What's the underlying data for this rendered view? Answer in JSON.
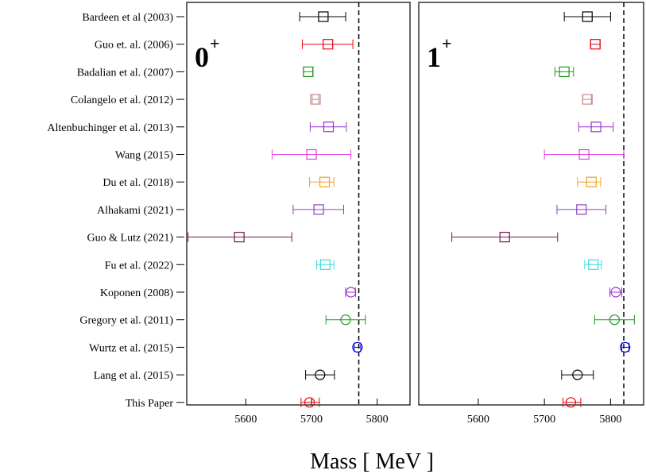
{
  "chart_data": {
    "type": "scatter",
    "xlabel": "Mass [ MeV ]",
    "xlim": [
      5510,
      5850
    ],
    "xticks": [
      5600,
      5700,
      5800
    ],
    "rows": [
      "Bardeen et al (2003)",
      "Guo et. al. (2006)",
      "Badalian et al. (2007)",
      "Colangelo et al. (2012)",
      "Altenbuchinger et al. (2013)",
      "Wang (2015)",
      "Du et al. (2018)",
      "Alhakami (2021)",
      "Guo & Lutz (2021)",
      "Fu et al. (2022)",
      "Koponen (2008)",
      "Gregory et al. (2011)",
      "Wurtz et al. (2015)",
      "Lang et al. (2015)",
      "This Paper"
    ],
    "colors": [
      "#000000",
      "#e8000b",
      "#1a9a1a",
      "#c08c8c",
      "#9a30d0",
      "#e040e0",
      "#f0a020",
      "#8a40c0",
      "#6a1a4a",
      "#40d8d8",
      "#9a30d0",
      "#1a9a1a",
      "#0000e0",
      "#000000",
      "#e8000b"
    ],
    "markers": [
      "square",
      "square",
      "square",
      "square",
      "square",
      "square",
      "square",
      "square",
      "square",
      "square",
      "circle",
      "circle",
      "circle",
      "circle",
      "circle"
    ],
    "panels": [
      {
        "title": "0",
        "title_sup": "+",
        "reference_line": 5772,
        "points": [
          {
            "value": 5718,
            "low": 5682,
            "high": 5752
          },
          {
            "value": 5725,
            "low": 5686,
            "high": 5763
          },
          {
            "value": 5695,
            "low": 5688,
            "high": 5702
          },
          {
            "value": 5706,
            "low": 5701,
            "high": 5711
          },
          {
            "value": 5726,
            "low": 5698,
            "high": 5753
          },
          {
            "value": 5700,
            "low": 5640,
            "high": 5760
          },
          {
            "value": 5720,
            "low": 5697,
            "high": 5734
          },
          {
            "value": 5711,
            "low": 5672,
            "high": 5749
          },
          {
            "value": 5590,
            "low": 5512,
            "high": 5670
          },
          {
            "value": 5721,
            "low": 5708,
            "high": 5734
          },
          {
            "value": 5760,
            "low": 5752,
            "high": 5767
          },
          {
            "value": 5752,
            "low": 5722,
            "high": 5782
          },
          {
            "value": 5770,
            "low": 5765,
            "high": 5775
          },
          {
            "value": 5713,
            "low": 5691,
            "high": 5735
          },
          {
            "value": 5697,
            "low": 5684,
            "high": 5712
          }
        ]
      },
      {
        "title": "1",
        "title_sup": "+",
        "reference_line": 5820,
        "points": [
          {
            "value": 5765,
            "low": 5730,
            "high": 5800
          },
          {
            "value": 5777,
            "low": 5770,
            "high": 5784
          },
          {
            "value": 5730,
            "low": 5716,
            "high": 5744
          },
          {
            "value": 5765,
            "low": 5758,
            "high": 5771
          },
          {
            "value": 5778,
            "low": 5752,
            "high": 5804
          },
          {
            "value": 5760,
            "low": 5700,
            "high": 5820
          },
          {
            "value": 5771,
            "low": 5750,
            "high": 5785
          },
          {
            "value": 5756,
            "low": 5719,
            "high": 5793
          },
          {
            "value": 5640,
            "low": 5560,
            "high": 5720
          },
          {
            "value": 5774,
            "low": 5761,
            "high": 5786
          },
          {
            "value": 5808,
            "low": 5799,
            "high": 5817
          },
          {
            "value": 5806,
            "low": 5776,
            "high": 5836
          },
          {
            "value": 5822,
            "low": 5817,
            "high": 5828
          },
          {
            "value": 5750,
            "low": 5726,
            "high": 5774
          },
          {
            "value": 5740,
            "low": 5728,
            "high": 5755
          }
        ]
      }
    ]
  }
}
